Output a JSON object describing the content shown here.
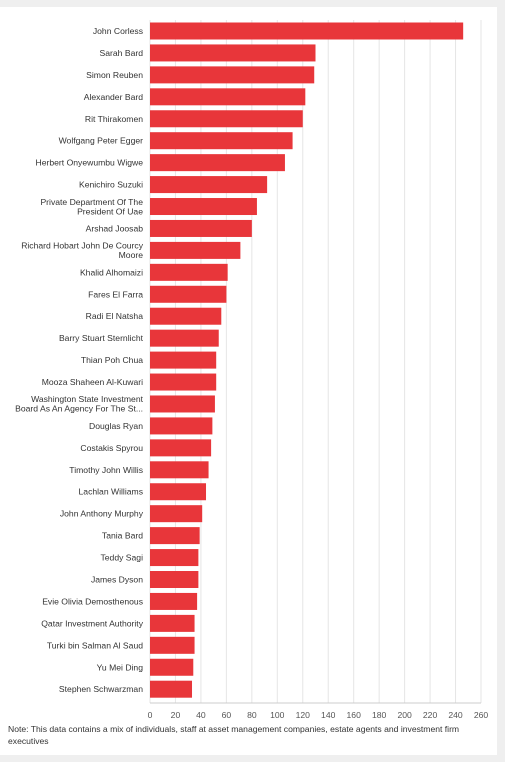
{
  "note": "Note: This data contains a mix of individuals, staff at asset management companies, estate agents and investment firm executives",
  "colors": {
    "bar": "#e8363a",
    "grid": "#e6e6e6",
    "axis": "#cccccc"
  },
  "chart_data": {
    "type": "bar",
    "orientation": "horizontal",
    "title": "",
    "xlabel": "",
    "ylabel": "",
    "xlim": [
      0,
      260
    ],
    "xticks": [
      0,
      20,
      40,
      60,
      80,
      100,
      120,
      140,
      160,
      180,
      200,
      220,
      240,
      260
    ],
    "grid": true,
    "legend": "none",
    "categories": [
      [
        "John Corless"
      ],
      [
        "Sarah Bard"
      ],
      [
        "Simon Reuben"
      ],
      [
        "Alexander Bard"
      ],
      [
        "Rit Thirakomen"
      ],
      [
        "Wolfgang Peter Egger"
      ],
      [
        "Herbert Onyewumbu Wigwe"
      ],
      [
        "Kenichiro Suzuki"
      ],
      [
        "Private Department Of The",
        "President Of Uae"
      ],
      [
        "Arshad Joosab"
      ],
      [
        "Richard Hobart John De Courcy",
        "Moore"
      ],
      [
        "Khalid Alhomaizi"
      ],
      [
        "Fares El Farra"
      ],
      [
        "Radi El Natsha"
      ],
      [
        "Barry Stuart Sternlicht"
      ],
      [
        "Thian Poh Chua"
      ],
      [
        "Mooza Shaheen Al-Kuwari"
      ],
      [
        "Washington State Investment",
        "Board As An Agency For The St..."
      ],
      [
        "Douglas Ryan"
      ],
      [
        "Costakis Spyrou"
      ],
      [
        "Timothy John Willis"
      ],
      [
        "Lachlan Williams"
      ],
      [
        "John Anthony Murphy"
      ],
      [
        "Tania Bard"
      ],
      [
        "Teddy Sagi"
      ],
      [
        "James Dyson"
      ],
      [
        "Evie Olivia Demosthenous"
      ],
      [
        "Qatar Investment Authority"
      ],
      [
        "Turki bin Salman Al Saud"
      ],
      [
        "Yu Mei Ding"
      ],
      [
        "Stephen Schwarzman"
      ]
    ],
    "values": [
      246,
      130,
      129,
      122,
      120,
      112,
      106,
      92,
      84,
      80,
      71,
      61,
      60,
      56,
      54,
      52,
      52,
      51,
      49,
      48,
      46,
      44,
      41,
      39,
      38,
      38,
      37,
      35,
      35,
      34,
      33
    ]
  }
}
